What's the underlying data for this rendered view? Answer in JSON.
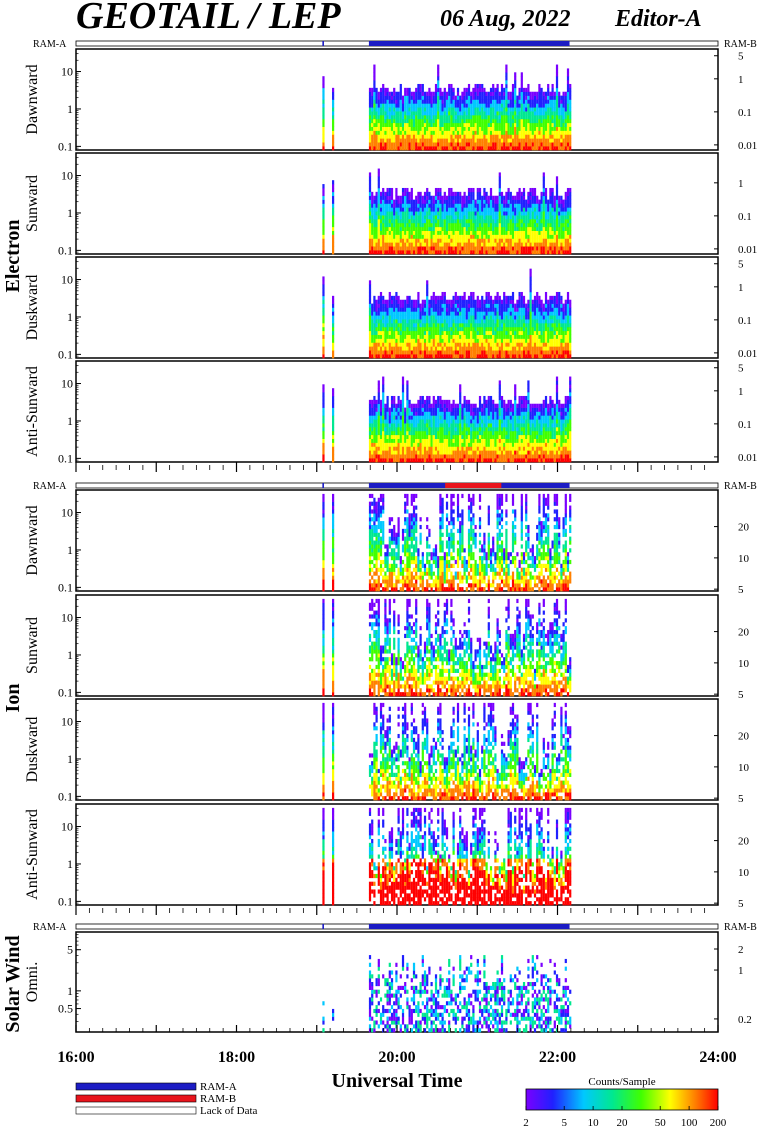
{
  "header": {
    "title": "GEOTAIL / LEP",
    "date": "06 Aug, 2022",
    "editor": "Editor-A"
  },
  "chart_data": {
    "type": "heatmap",
    "x_axis": {
      "label": "Universal Time",
      "range": [
        "16:00",
        "24:00"
      ],
      "tick_labels": [
        "16:00",
        "18:00",
        "20:00",
        "22:00",
        "24:00"
      ],
      "range_hours": [
        16,
        24
      ]
    },
    "ram_labels": {
      "left": "RAM-A",
      "right": "RAM-B"
    },
    "groups": [
      {
        "name": "Electron",
        "ram_bar": [
          {
            "start": 19.07,
            "end": 19.09,
            "mode": "RAM-A"
          },
          {
            "start": 19.65,
            "end": 22.15,
            "mode": "RAM-A"
          }
        ],
        "panels": [
          {
            "label": "Dawnward",
            "ylim": [
              0.08,
              40
            ],
            "left_ticks": [
              "10",
              "1",
              "0.1"
            ],
            "right_ticks": [
              "5",
              "1",
              "0.1",
              "0.01"
            ]
          },
          {
            "label": "Sunward",
            "ylim": [
              0.08,
              40
            ],
            "left_ticks": [
              "10",
              "1",
              "0.1"
            ],
            "right_ticks": [
              "1",
              "0.1",
              "0.01"
            ]
          },
          {
            "label": "Duskward",
            "ylim": [
              0.08,
              40
            ],
            "left_ticks": [
              "10",
              "1",
              "0.1"
            ],
            "right_ticks": [
              "5",
              "1",
              "0.1",
              "0.01"
            ]
          },
          {
            "label": "Anti-Sunward",
            "ylim": [
              0.08,
              40
            ],
            "left_ticks": [
              "10",
              "1",
              "0.1"
            ],
            "right_ticks": [
              "5",
              "1",
              "0.1",
              "0.01"
            ]
          }
        ]
      },
      {
        "name": "Ion",
        "ram_bar": [
          {
            "start": 19.07,
            "end": 19.09,
            "mode": "RAM-A"
          },
          {
            "start": 19.65,
            "end": 22.15,
            "mode": "RAM-A"
          },
          {
            "start": 20.6,
            "end": 21.3,
            "mode": "RAM-B"
          }
        ],
        "panels": [
          {
            "label": "Dawnward",
            "ylim": [
              0.08,
              40
            ],
            "left_ticks": [
              "10",
              "1",
              "0.1"
            ],
            "right_ticks": [
              "20",
              "10",
              "5"
            ]
          },
          {
            "label": "Sunward",
            "ylim": [
              0.08,
              40
            ],
            "left_ticks": [
              "10",
              "1",
              "0.1"
            ],
            "right_ticks": [
              "20",
              "10",
              "5"
            ]
          },
          {
            "label": "Duskward",
            "ylim": [
              0.08,
              40
            ],
            "left_ticks": [
              "10",
              "1",
              "0.1"
            ],
            "right_ticks": [
              "20",
              "10",
              "5"
            ]
          },
          {
            "label": "Anti-Sunward",
            "ylim": [
              0.08,
              40
            ],
            "left_ticks": [
              "10",
              "1",
              "0.1"
            ],
            "right_ticks": [
              "20",
              "10",
              "5"
            ]
          }
        ]
      },
      {
        "name": "Solar Wind",
        "ram_bar": [
          {
            "start": 19.07,
            "end": 19.09,
            "mode": "RAM-A"
          },
          {
            "start": 19.65,
            "end": 22.15,
            "mode": "RAM-A"
          }
        ],
        "panels": [
          {
            "label": "Omni.",
            "ylim": [
              0.2,
              10
            ],
            "left_ticks": [
              "5",
              "1",
              "0.5"
            ],
            "right_ticks": [
              "2",
              "1",
              "0.2"
            ]
          }
        ]
      }
    ],
    "data_intervals": [
      {
        "start": 19.07,
        "end": 19.09
      },
      {
        "start": 19.19,
        "end": 19.21
      },
      {
        "start": 19.65,
        "end": 22.15
      }
    ],
    "legend": {
      "entries": [
        {
          "label": "RAM-A",
          "color": "#1c1cc4"
        },
        {
          "label": "RAM-B",
          "color": "#e8141c"
        },
        {
          "label": "Lack of Data",
          "color": "#ffffff"
        }
      ]
    },
    "colorbar": {
      "title": "Counts/Sample",
      "tick_labels": [
        "2",
        "5",
        "10",
        "20",
        "50",
        "100",
        "200"
      ],
      "scale": "log",
      "colors": [
        "#7a00ff",
        "#2020ff",
        "#00c8ff",
        "#00e890",
        "#40ff00",
        "#ffff00",
        "#ff8000",
        "#ff0000"
      ]
    }
  }
}
